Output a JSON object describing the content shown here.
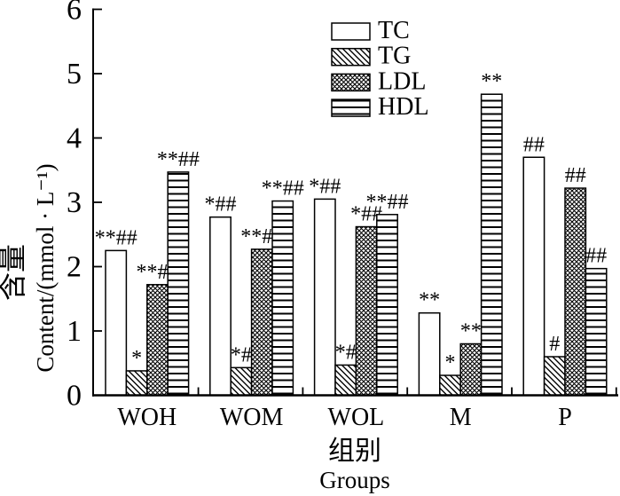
{
  "figure": {
    "background_color": "#ffffff",
    "foreground_color": "#000000"
  },
  "chart_data": {
    "type": "bar",
    "title": "",
    "ylabel_zh": "含量",
    "ylabel_en": "Content/(mmol · L⁻¹)",
    "xlabel_zh": "组别",
    "xlabel_en": "Groups",
    "ylim": [
      0,
      6
    ],
    "yticks": [
      0,
      1,
      2,
      3,
      4,
      5,
      6
    ],
    "grid": "off",
    "legend_position": "upper-center",
    "categories": [
      "WOH",
      "WOM",
      "WOL",
      "M",
      "P"
    ],
    "series": [
      {
        "name": "TC",
        "pattern": "plain",
        "values": [
          2.25,
          2.77,
          3.05,
          1.28,
          3.7
        ],
        "annotations": [
          "**##",
          "*##",
          "*##",
          "**",
          "##"
        ]
      },
      {
        "name": "TG",
        "pattern": "diagonal",
        "values": [
          0.38,
          0.43,
          0.47,
          0.31,
          0.6
        ],
        "annotations": [
          "*",
          "*#",
          "*#",
          "*",
          "#"
        ]
      },
      {
        "name": "LDL",
        "pattern": "crosshatch",
        "values": [
          1.72,
          2.27,
          2.62,
          0.8,
          3.22
        ],
        "annotations": [
          "**##",
          "**##",
          "*##",
          "**",
          "##"
        ]
      },
      {
        "name": "HDL",
        "pattern": "horizontal",
        "values": [
          3.47,
          3.02,
          2.81,
          4.68,
          1.97
        ],
        "annotations": [
          "**##",
          "**##",
          "**##",
          "**",
          "##"
        ]
      }
    ]
  }
}
